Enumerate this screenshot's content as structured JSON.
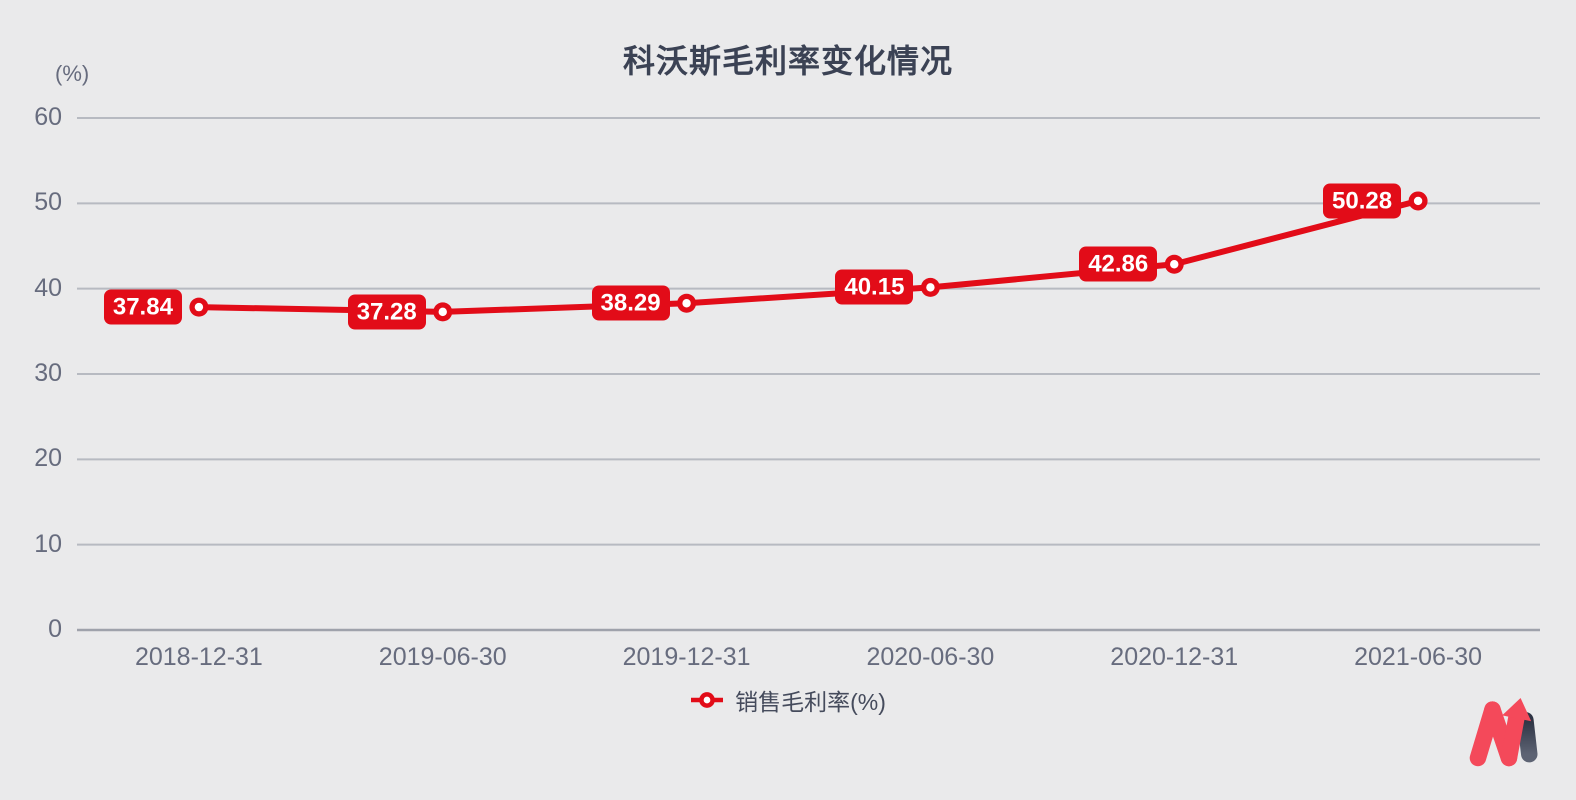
{
  "page": {
    "title": "科沃斯毛利率变化情况",
    "y_axis_unit": "(%)"
  },
  "legend": {
    "items": [
      {
        "label": "销售毛利率(%)"
      }
    ]
  },
  "colors": {
    "background": "#eaeaeb",
    "title_text": "#3b4254",
    "axis_text": "#676c7e",
    "grid_line": "#b7bac1",
    "zero_axis_line": "#9fa2ab",
    "series_red": "#e20c18",
    "marker_hole": "#ffffff",
    "data_label_text": "#ffffff",
    "legend_text": "#454b5c",
    "logo_red": "#f4495a",
    "logo_dark_top": "#2e3444",
    "logo_dark_bottom": "#5d6373"
  },
  "icons": {
    "legend_marker": "line-with-donut-marker",
    "logo": "m-shaped-rising-trend-arrow"
  },
  "chart_data": {
    "type": "line",
    "title": "科沃斯毛利率变化情况",
    "xlabel": "",
    "ylabel": "(%)",
    "categories": [
      "2018-12-31",
      "2019-06-30",
      "2019-12-31",
      "2020-06-30",
      "2020-12-31",
      "2021-06-30"
    ],
    "series": [
      {
        "name": "销售毛利率(%)",
        "values": [
          37.84,
          37.28,
          38.29,
          40.15,
          42.86,
          50.28
        ],
        "color": "#e20c18"
      }
    ],
    "ylim": [
      0,
      60
    ],
    "yticks": [
      0,
      10,
      20,
      30,
      40,
      50,
      60
    ],
    "grid": true,
    "data_labels": true,
    "legend_position": "bottom"
  }
}
